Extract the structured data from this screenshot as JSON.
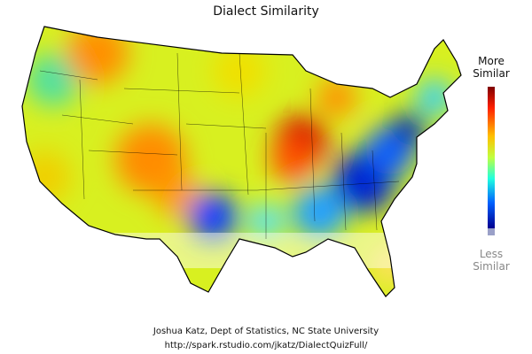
{
  "title": "Dialect Similarity",
  "legend": {
    "high_label": [
      "More",
      "Similar"
    ],
    "low_label": [
      "Less",
      "Similar"
    ]
  },
  "credits": [
    "Joshua Katz, Dept of Statistics, NC State University",
    "http://spark.rstudio.com/jkatz/DialectQuizFull/"
  ]
}
